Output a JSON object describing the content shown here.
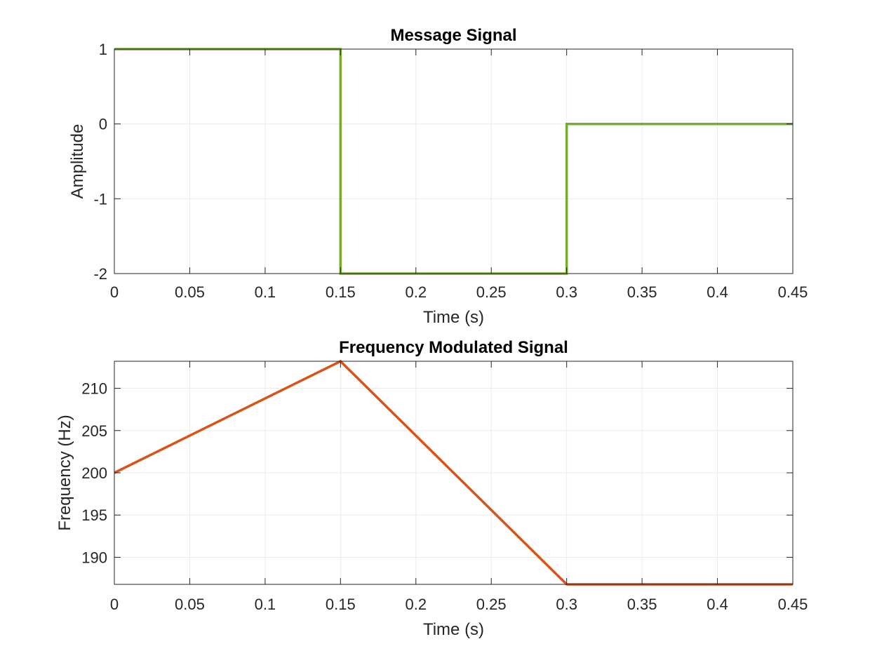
{
  "chart_data": [
    {
      "type": "line",
      "title": "Message Signal",
      "xlabel": "Time (s)",
      "ylabel": "Amplitude",
      "xlim": [
        0,
        0.45
      ],
      "ylim": [
        -2,
        1
      ],
      "xticks": [
        0,
        0.05,
        0.1,
        0.15,
        0.2,
        0.25,
        0.3,
        0.35,
        0.4,
        0.45
      ],
      "xtick_labels": [
        "0",
        "0.05",
        "0.1",
        "0.15",
        "0.2",
        "0.25",
        "0.3",
        "0.35",
        "0.4",
        "0.45"
      ],
      "yticks": [
        -2,
        -1,
        0,
        1
      ],
      "ytick_labels": [
        "-2",
        "-1",
        "0",
        "1"
      ],
      "grid": true,
      "color": "#77AC30",
      "series": [
        {
          "x": [
            0,
            0.15,
            0.15,
            0.3,
            0.3,
            0.45
          ],
          "y": [
            1,
            1,
            -2,
            -2,
            0,
            0
          ]
        }
      ]
    },
    {
      "type": "line",
      "title": "Frequency Modulated Signal",
      "xlabel": "Time (s)",
      "ylabel": "Frequency (Hz)",
      "xlim": [
        0,
        0.45
      ],
      "ylim": [
        186.8,
        213.2
      ],
      "xticks": [
        0,
        0.05,
        0.1,
        0.15,
        0.2,
        0.25,
        0.3,
        0.35,
        0.4,
        0.45
      ],
      "xtick_labels": [
        "0",
        "0.05",
        "0.1",
        "0.15",
        "0.2",
        "0.25",
        "0.3",
        "0.35",
        "0.4",
        "0.45"
      ],
      "yticks": [
        190,
        195,
        200,
        205,
        210
      ],
      "ytick_labels": [
        "190",
        "195",
        "200",
        "205",
        "210"
      ],
      "grid": true,
      "color": "#D95319",
      "series": [
        {
          "x": [
            0,
            0.15,
            0.3,
            0.45
          ],
          "y": [
            200,
            213.2,
            186.8,
            186.8
          ]
        }
      ]
    }
  ]
}
